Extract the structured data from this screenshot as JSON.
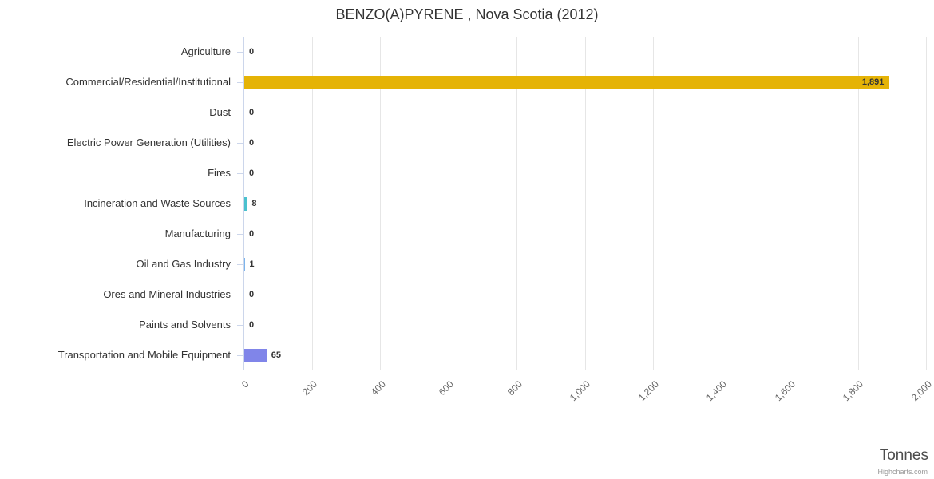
{
  "credits": "Highcharts.com",
  "chart_data": {
    "type": "bar",
    "orientation": "horizontal",
    "title": "BENZO(A)PYRENE , Nova Scotia (2012)",
    "xlabel": "Tonnes",
    "ylabel": "",
    "legend": false,
    "grid": true,
    "categories": [
      "Agriculture",
      "Commercial/Residential/Institutional",
      "Dust",
      "Electric Power Generation (Utilities)",
      "Fires",
      "Incineration and Waste Sources",
      "Manufacturing",
      "Oil and Gas Industry",
      "Ores and Mineral Industries",
      "Paints and Solvents",
      "Transportation and Mobile Equipment"
    ],
    "values": [
      0,
      1891,
      0,
      0,
      0,
      8,
      0,
      1,
      0,
      0,
      65
    ],
    "value_labels": [
      "0",
      "1,891",
      "0",
      "0",
      "0",
      "8",
      "0",
      "1",
      "0",
      "0",
      "65"
    ],
    "point_colors": [
      null,
      "#e5b306",
      null,
      null,
      null,
      "#4ac1ce",
      null,
      null,
      null,
      null,
      "#8085e9"
    ],
    "default_color": "#7cb5ec",
    "xlim": [
      0,
      2000
    ],
    "xticks": [
      0,
      200,
      400,
      600,
      800,
      1000,
      1200,
      1400,
      1600,
      1800,
      2000
    ],
    "xtick_labels": [
      "0",
      "200",
      "400",
      "600",
      "800",
      "1,000",
      "1,200",
      "1,400",
      "1,600",
      "1,800",
      "2,000"
    ],
    "gridline_color": "#e6e6e6",
    "axis_line_color": "#ccd6eb"
  }
}
